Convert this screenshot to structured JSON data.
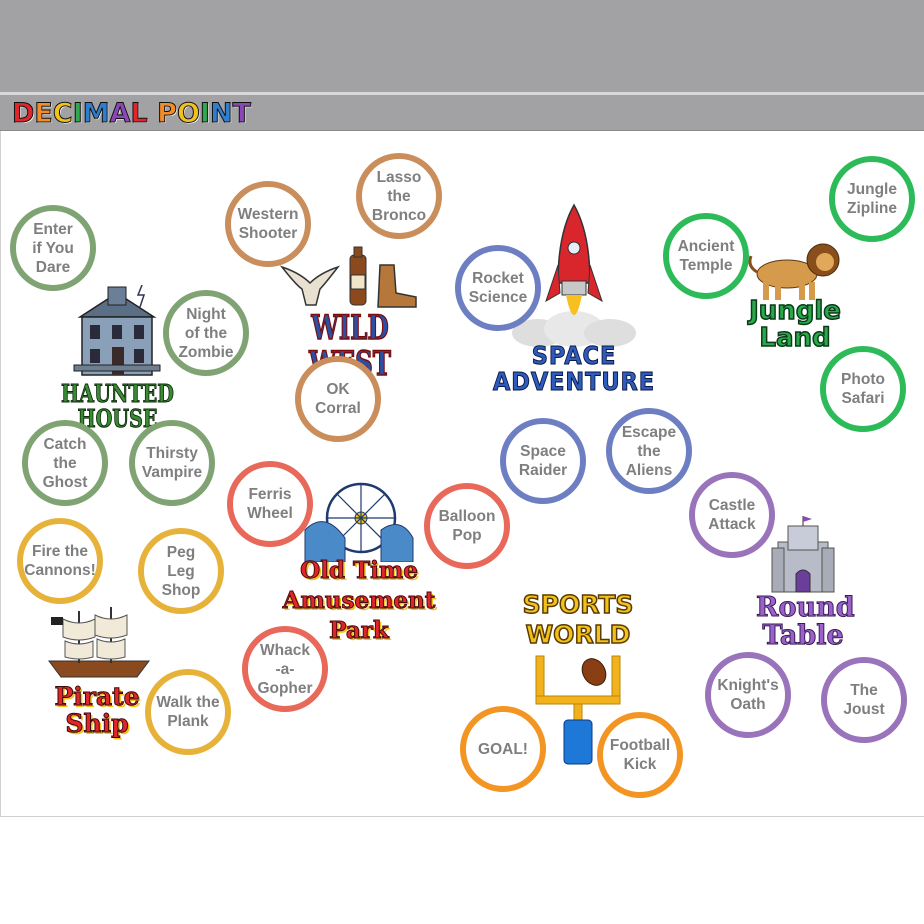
{
  "app": {
    "logo_text": [
      "D",
      "E",
      "C",
      "I",
      "M",
      "A",
      "L",
      " ",
      "P",
      "O",
      "I",
      "N",
      "T"
    ],
    "logo_colors": [
      "#e0262b",
      "#f28c28",
      "#f2c21c",
      "#31a84f",
      "#2f7fd0",
      "#8b47b7",
      "#e0262b",
      "",
      "#f28c28",
      "#f2c21c",
      "#31a84f",
      "#2f7fd0",
      "#8b47b7"
    ]
  },
  "lands": {
    "haunted_house": "HAUNTED HOUSE",
    "wild_west": "WILD WEST",
    "space_adventure": "SPACE\nADVENTURE",
    "jungle_land": "Jungle\nLand",
    "amusement_park": "Old Time\nAmusement\nPark",
    "sports_world": "SPORTS\nWORLD",
    "round_table": "Round\nTable",
    "pirate_ship": "Pirate\nShip"
  },
  "games": {
    "enter_if_you_dare": "Enter\nif You\nDare",
    "night_of_the_zombie": "Night\nof the\nZombie",
    "catch_the_ghost": "Catch\nthe\nGhost",
    "thirsty_vampire": "Thirsty\nVampire",
    "western_shooter": "Western\nShooter",
    "lasso_the_bronco": "Lasso\nthe\nBronco",
    "ok_corral": "OK\nCorral",
    "rocket_science": "Rocket\nScience",
    "space_raider": "Space\nRaider",
    "escape_the_aliens": "Escape\nthe\nAliens",
    "ancient_temple": "Ancient\nTemple",
    "jungle_zipline": "Jungle\nZipline",
    "photo_safari": "Photo\nSafari",
    "ferris_wheel": "Ferris\nWheel",
    "balloon_pop": "Balloon\nPop",
    "whack_a_gopher": "Whack\n-a-\nGopher",
    "fire_the_cannons": "Fire the\nCannons!",
    "peg_leg_shop": "Peg\nLeg\nShop",
    "walk_the_plank": "Walk the\nPlank",
    "goal": "GOAL!",
    "football_kick": "Football\nKick",
    "castle_attack": "Castle\nAttack",
    "knights_oath": "Knight's\nOath",
    "the_joust": "The\nJoust"
  }
}
